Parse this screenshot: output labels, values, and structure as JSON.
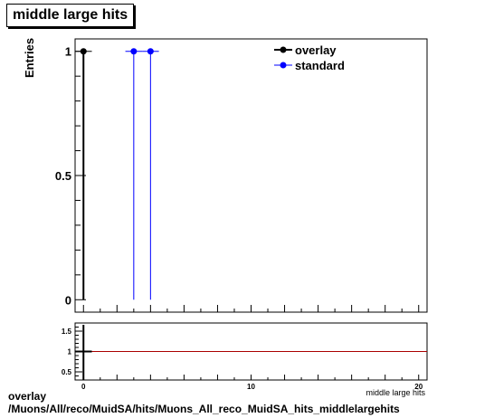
{
  "title": "middle large hits",
  "footer": {
    "line1": "overlay",
    "line2": "/Muons/All/reco/MuidSA/hits/Muons_All_reco_MuidSA_hits_middlelargehits"
  },
  "chart_data": [
    {
      "type": "scatter",
      "title": "middle large hits",
      "ylabel": "Entries",
      "xlabel": "middle large hits",
      "xlim": [
        -0.5,
        20.5
      ],
      "ylim": [
        -0.05,
        1.05
      ],
      "yticks": [
        "0",
        "0.5",
        "1"
      ],
      "legend": "top-right",
      "series": [
        {
          "name": "overlay",
          "color": "#000000",
          "points": [
            {
              "x": 0,
              "y": 1
            }
          ]
        },
        {
          "name": "standard",
          "color": "#0000ff",
          "points": [
            {
              "x": 3,
              "y": 1
            },
            {
              "x": 4,
              "y": 1
            }
          ]
        }
      ]
    },
    {
      "type": "line",
      "xlim": [
        -0.5,
        20.5
      ],
      "ylim": [
        0.3,
        1.7
      ],
      "xticks": [
        "0",
        "10",
        "20"
      ],
      "yticks": [
        "0.5",
        "1",
        "1.5"
      ],
      "series": [
        {
          "color": "#aa0000",
          "points": [
            {
              "x": -0.5,
              "y": 1
            },
            {
              "x": 20.5,
              "y": 1
            }
          ]
        }
      ]
    }
  ]
}
